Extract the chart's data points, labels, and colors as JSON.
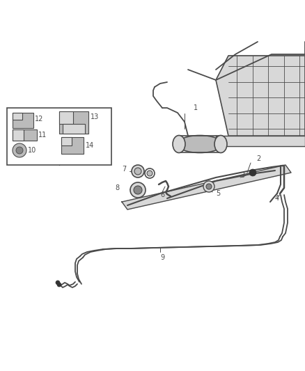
{
  "bg_color": "#ffffff",
  "line_color": "#4a4a4a",
  "dark_color": "#333333",
  "light_fill": "#d8d8d8",
  "mid_fill": "#bbbbbb",
  "dark_fill": "#888888"
}
